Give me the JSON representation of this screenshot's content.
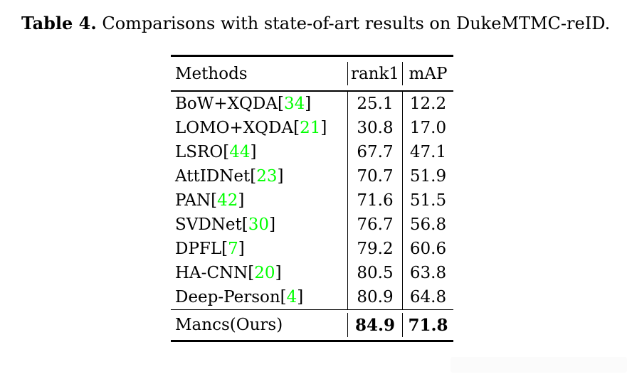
{
  "caption": {
    "label": "Table 4.",
    "text": " Comparisons with state-of-art results on DukeMTMC-reID."
  },
  "table": {
    "header": {
      "methods": "Methods",
      "rank1": "rank1",
      "map": "mAP"
    },
    "rows": [
      {
        "method": "BoW+XQDA",
        "cite_open": " [",
        "cite": "34",
        "cite_close": "]",
        "rank1": "25.1",
        "map": "12.2"
      },
      {
        "method": "LOMO+XQDA",
        "cite_open": " [",
        "cite": "21",
        "cite_close": "]",
        "rank1": "30.8",
        "map": "17.0"
      },
      {
        "method": "LSRO",
        "cite_open": " [",
        "cite": "44",
        "cite_close": "]",
        "rank1": "67.7",
        "map": "47.1"
      },
      {
        "method": "AttIDNet",
        "cite_open": " [",
        "cite": "23",
        "cite_close": "]",
        "rank1": "70.7",
        "map": "51.9"
      },
      {
        "method": "PAN",
        "cite_open": " [",
        "cite": "42",
        "cite_close": "]",
        "rank1": "71.6",
        "map": "51.5"
      },
      {
        "method": "SVDNet",
        "cite_open": " [",
        "cite": "30",
        "cite_close": "]",
        "rank1": "76.7",
        "map": "56.8"
      },
      {
        "method": "DPFL",
        "cite_open": " [",
        "cite": "7",
        "cite_close": "]",
        "rank1": "79.2",
        "map": "60.6"
      },
      {
        "method": "HA-CNN",
        "cite_open": " [",
        "cite": "20",
        "cite_close": "]",
        "rank1": "80.5",
        "map": "63.8"
      },
      {
        "method": "Deep-Person",
        "cite_open": " [",
        "cite": "4",
        "cite_close": "]",
        "rank1": "80.9",
        "map": "64.8"
      }
    ],
    "final_row": {
      "method": "Mancs(Ours)",
      "rank1": "84.9",
      "map": "71.8"
    }
  },
  "colors": {
    "citation_green": "#00ff00",
    "text_black": "#000000",
    "artifact_gray": "#fbfbfb"
  }
}
